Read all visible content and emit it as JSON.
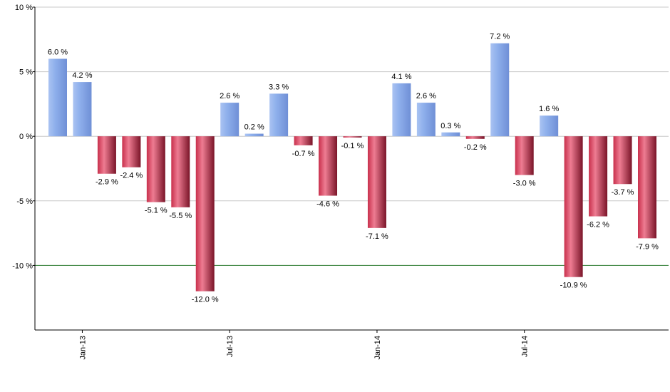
{
  "chart_data": {
    "type": "bar",
    "categories": [
      null,
      "Jan-13",
      null,
      null,
      null,
      null,
      null,
      "Jul-13",
      null,
      null,
      null,
      null,
      null,
      "Jan-14",
      null,
      null,
      null,
      null,
      null,
      "Jul-14",
      null,
      null,
      null,
      null,
      null
    ],
    "values": [
      6.0,
      4.2,
      -2.9,
      -2.4,
      -5.1,
      -5.5,
      -12.0,
      2.6,
      0.2,
      3.3,
      -0.7,
      -4.6,
      -0.1,
      -7.1,
      4.1,
      2.6,
      0.3,
      -0.2,
      7.2,
      -3.0,
      1.6,
      -10.9,
      -6.2,
      -3.7,
      -7.9
    ],
    "value_labels": [
      "6.0 %",
      "4.2 %",
      "-2.9 %",
      "-2.4 %",
      "-5.1 %",
      "-5.5 %",
      "-12.0 %",
      "2.6 %",
      "0.2 %",
      "3.3 %",
      "-0.7 %",
      "-4.6 %",
      "-0.1 %",
      "-7.1 %",
      "4.1 %",
      "2.6 %",
      "0.3 %",
      "-0.2 %",
      "7.2 %",
      "-3.0 %",
      "1.6 %",
      "-10.9 %",
      "-6.2 %",
      "-3.7 %",
      "-7.9 %"
    ],
    "positive_color": "#6f8fd6",
    "negative_color": "#c8304c",
    "ylim": [
      -15,
      10
    ],
    "yticks": [
      {
        "value": 10,
        "label": "10 %"
      },
      {
        "value": 5,
        "label": "5 %"
      },
      {
        "value": 0,
        "label": "0 %"
      },
      {
        "value": -5,
        "label": "-5 %"
      },
      {
        "value": -10,
        "label": "-10 %"
      }
    ],
    "grid": true,
    "reference_line": -10,
    "reference_color": "#2e7d32"
  }
}
